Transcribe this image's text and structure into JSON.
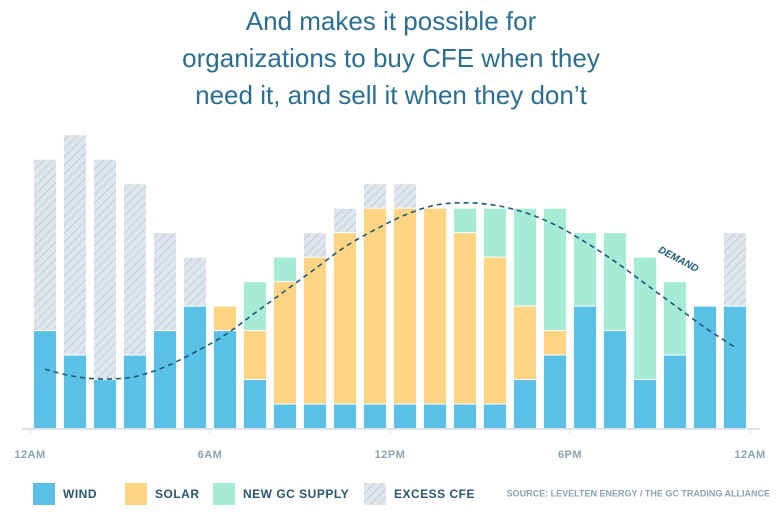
{
  "chart_data": {
    "type": "stacked-bar",
    "title_lines": [
      "And makes it possible for",
      "organizations to buy CFE when they",
      "need it, and sell it when they don’t"
    ],
    "x": [
      0.5,
      1.5,
      2.5,
      3.5,
      4.5,
      5.5,
      6.5,
      7.5,
      8.5,
      9.5,
      10.5,
      11.5,
      12.5,
      13.5,
      14.5,
      15.5,
      16.5,
      17.5,
      18.5,
      19.5,
      20.5,
      21.5,
      22.5,
      23.5
    ],
    "xlim": [
      0,
      24
    ],
    "xticks": [
      {
        "value": 0,
        "label": "12AM"
      },
      {
        "value": 6,
        "label": "6AM"
      },
      {
        "value": 12,
        "label": "12PM"
      },
      {
        "value": 18,
        "label": "6PM"
      },
      {
        "value": 24,
        "label": "12AM"
      }
    ],
    "ylim": [
      0,
      12.5
    ],
    "series": [
      {
        "name": "WIND",
        "color": "#5bc0e6",
        "values": [
          4,
          3,
          2,
          3,
          4,
          5,
          4,
          2,
          1,
          1,
          1,
          1,
          1,
          1,
          1,
          1,
          2,
          3,
          5,
          4,
          2,
          3,
          5,
          5
        ]
      },
      {
        "name": "SOLAR",
        "color": "#fdd384",
        "values": [
          null,
          null,
          null,
          null,
          null,
          null,
          1,
          2,
          5,
          6,
          7,
          8,
          8,
          8,
          7,
          6,
          3,
          1,
          null,
          null,
          null,
          null,
          null,
          null
        ]
      },
      {
        "name": "NEW GC SUPPLY",
        "color": "#a6ebd6",
        "values": [
          null,
          null,
          null,
          null,
          null,
          null,
          null,
          2,
          1,
          null,
          null,
          null,
          null,
          null,
          1,
          2,
          4,
          5,
          3,
          4,
          5,
          3,
          null,
          null
        ]
      },
      {
        "name": "EXCESS CFE",
        "color": "#d5dde6",
        "hatch": true,
        "values": [
          7,
          9,
          9,
          7,
          4,
          2,
          null,
          null,
          null,
          1,
          1,
          1,
          1,
          null,
          null,
          null,
          null,
          null,
          null,
          null,
          null,
          null,
          null,
          3
        ]
      }
    ],
    "demand": {
      "name": "DEMAND",
      "color": "#1f5a78",
      "values": [
        2.4,
        2.1,
        2.0,
        2.1,
        2.5,
        3.1,
        3.8,
        4.7,
        5.6,
        6.5,
        7.4,
        8.1,
        8.7,
        9.1,
        9.2,
        9.1,
        8.8,
        8.3,
        7.6,
        6.8,
        5.9,
        5.0,
        4.1,
        3.3
      ]
    },
    "source": "SOURCE: LEVELTEN ENERGY / THE GC TRADING ALLIANCE"
  }
}
